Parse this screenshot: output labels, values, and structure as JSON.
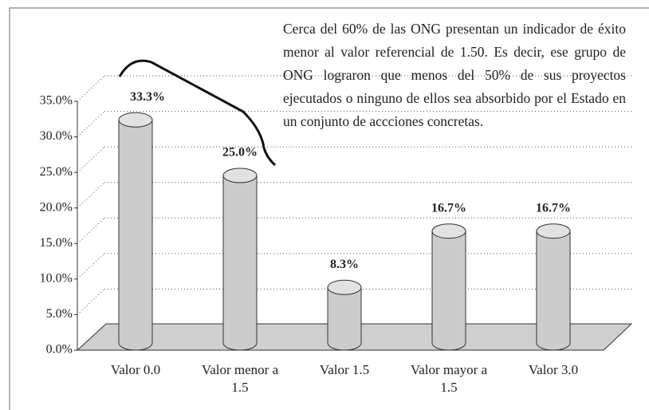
{
  "chart_data": {
    "type": "cylinder-bar",
    "categories": [
      "Valor 0.0",
      "Valor menor a 1.5",
      "Valor 1.5",
      "Valor mayor a 1.5",
      "Valor 3.0"
    ],
    "values": [
      33.3,
      25.0,
      8.3,
      16.7,
      16.7
    ],
    "value_labels": [
      "33.3%",
      "25.0%",
      "8.3%",
      "16.7%",
      "16.7%"
    ],
    "color": "#cccccc",
    "ylim": [
      0,
      35
    ],
    "yticks": [
      {
        "value": 0,
        "label": "0.0%"
      },
      {
        "value": 5,
        "label": "5.0%"
      },
      {
        "value": 10,
        "label": "10.0%"
      },
      {
        "value": 15,
        "label": "15.0%"
      },
      {
        "value": 20,
        "label": "20.0%"
      },
      {
        "value": 25,
        "label": "25.0%"
      },
      {
        "value": 30,
        "label": "30.0%"
      },
      {
        "value": 35,
        "label": "35.0%"
      }
    ],
    "grid": true,
    "annotation": "Cerca del 60% de las ONG presentan un indicador de éxito menor al valor referencial de 1.50. Es decir, ese grupo de ONG lograron que menos del 50% de sus proyectos ejecutados o ninguno de ellos sea absorbido por el Estado en un conjunto de accciones concretas."
  }
}
